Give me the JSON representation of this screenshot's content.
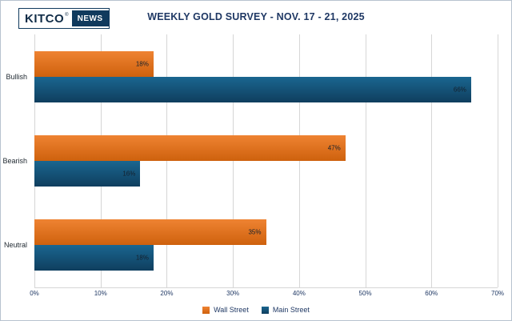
{
  "logo": {
    "brand": "KITCO",
    "registered": "®",
    "sub": "NEWS"
  },
  "chart_data": {
    "type": "bar",
    "orientation": "horizontal",
    "title": "WEEKLY GOLD SURVEY - NOV. 17 - 21, 2025",
    "categories": [
      "Bullish",
      "Bearish",
      "Neutral"
    ],
    "series": [
      {
        "name": "Wall Street",
        "color": "#EF8332",
        "color_dark": "#CE610D",
        "values": [
          18,
          47,
          35
        ]
      },
      {
        "name": "Main Street",
        "color": "#1A6690",
        "color_dark": "#0F3E5E",
        "values": [
          66,
          16,
          18
        ]
      }
    ],
    "xlim": [
      0,
      70
    ],
    "x_tick_step": 10,
    "x_tick_labels": [
      "0%",
      "10%",
      "20%",
      "30%",
      "40%",
      "50%",
      "60%",
      "70%"
    ],
    "value_suffix": "%",
    "grid": true,
    "legend_position": "bottom"
  },
  "colors": {
    "title": "#1F3864",
    "axis_text": "#1F3864",
    "grid": "#D6D6D6",
    "logo_navy": "#103A5D"
  }
}
